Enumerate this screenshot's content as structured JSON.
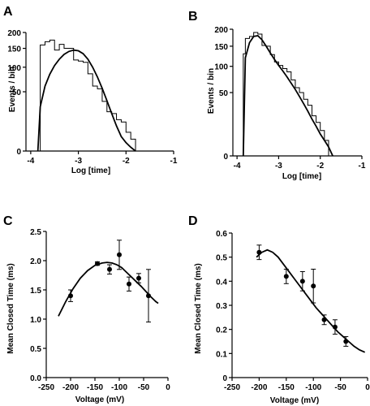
{
  "chart_data": [
    {
      "panel": "A",
      "type": "histogram",
      "xlabel": "Log [time]",
      "ylabel": "Events / bin",
      "xlim": [
        -4.1,
        -1
      ],
      "xticks": [
        -4,
        -3,
        -2,
        -1
      ],
      "yticks": [
        0,
        50,
        100,
        150,
        200
      ],
      "y_scale": "sqrt",
      "histogram": {
        "edges": [
          -3.8,
          -3.7,
          -3.6,
          -3.5,
          -3.4,
          -3.3,
          -3.2,
          -3.1,
          -3.0,
          -2.9,
          -2.8,
          -2.7,
          -2.6,
          -2.5,
          -2.4,
          -2.3,
          -2.2,
          -2.1,
          -2.0,
          -1.9,
          -1.8
        ],
        "counts": [
          160,
          170,
          175,
          145,
          162,
          150,
          150,
          118,
          115,
          112,
          85,
          60,
          55,
          35,
          22,
          20,
          14,
          12,
          5,
          2
        ]
      },
      "curve": {
        "x": [
          -3.85,
          -3.8,
          -3.7,
          -3.6,
          -3.5,
          -3.4,
          -3.3,
          -3.2,
          -3.1,
          -3.0,
          -2.9,
          -2.8,
          -2.7,
          -2.6,
          -2.5,
          -2.4,
          -2.3,
          -2.2,
          -2.1,
          -2.0,
          -1.9,
          -1.8
        ],
        "y": [
          0,
          28,
          60,
          84,
          104,
          120,
          133,
          141,
          145,
          143,
          135,
          120,
          100,
          78,
          56,
          36,
          20,
          9,
          3,
          1,
          0.2,
          0
        ]
      }
    },
    {
      "panel": "B",
      "type": "histogram",
      "xlabel": "Log [time]",
      "ylabel": "Events / bin",
      "xlim": [
        -4.1,
        -1
      ],
      "xticks": [
        -4,
        -3,
        -2,
        -1
      ],
      "yticks": [
        0,
        50,
        100,
        150,
        200
      ],
      "y_scale": "sqrt",
      "histogram": {
        "edges": [
          -3.85,
          -3.8,
          -3.7,
          -3.6,
          -3.5,
          -3.4,
          -3.3,
          -3.2,
          -3.1,
          -3.0,
          -2.9,
          -2.8,
          -2.7,
          -2.6,
          -2.5,
          -2.4,
          -2.3,
          -2.2,
          -2.1,
          -2.0,
          -1.9,
          -1.8
        ],
        "counts": [
          130,
          172,
          178,
          190,
          185,
          152,
          150,
          128,
          110,
          102,
          95,
          88,
          72,
          58,
          50,
          40,
          32,
          20,
          14,
          8,
          3
        ]
      },
      "curve": {
        "x": [
          -3.85,
          -3.8,
          -3.7,
          -3.6,
          -3.5,
          -3.4,
          -3.3,
          -3.2,
          -3.1,
          -3.0,
          -2.9,
          -2.8,
          -2.7,
          -2.6,
          -2.5,
          -2.4,
          -2.3,
          -2.2,
          -2.1,
          -2.0,
          -1.9,
          -1.8,
          -1.7
        ],
        "y": [
          0,
          120,
          160,
          178,
          180,
          168,
          150,
          132,
          116,
          102,
          90,
          78,
          66,
          55,
          44,
          34,
          25,
          17,
          11,
          6,
          3,
          1,
          0
        ]
      }
    },
    {
      "panel": "C",
      "type": "scatter",
      "xlabel": "Voltage  (mV)",
      "ylabel": "Mean Closed Time (ms)",
      "xlim": [
        -250,
        0
      ],
      "ylim": [
        0,
        2.5
      ],
      "xticks": [
        -250,
        -200,
        -150,
        -100,
        -50,
        0
      ],
      "yticks": [
        0,
        0.5,
        1.0,
        1.5,
        2.0,
        2.5
      ],
      "yticklabels": [
        "0.0",
        "0.5",
        "1.0",
        "1.5",
        "2.0",
        "2.5"
      ],
      "points": [
        {
          "x": -200,
          "y": 1.4,
          "err": 0.1
        },
        {
          "x": -145,
          "y": 1.95,
          "err": 0.03
        },
        {
          "x": -120,
          "y": 1.85,
          "err": 0.08
        },
        {
          "x": -100,
          "y": 2.1,
          "err": 0.25
        },
        {
          "x": -80,
          "y": 1.6,
          "err": 0.12
        },
        {
          "x": -60,
          "y": 1.7,
          "err": 0.08
        },
        {
          "x": -40,
          "y": 1.4,
          "err": 0.45
        }
      ],
      "curve": {
        "x": [
          -225,
          -210,
          -195,
          -180,
          -165,
          -150,
          -135,
          -125,
          -115,
          -105,
          -95,
          -85,
          -75,
          -65,
          -55,
          -45,
          -35,
          -25,
          -20
        ],
        "y": [
          1.05,
          1.3,
          1.52,
          1.7,
          1.83,
          1.92,
          1.96,
          1.97,
          1.96,
          1.93,
          1.88,
          1.8,
          1.72,
          1.64,
          1.56,
          1.47,
          1.38,
          1.3,
          1.27
        ]
      }
    },
    {
      "panel": "D",
      "type": "scatter",
      "xlabel": "Voltage  (mV)",
      "ylabel": "Mean Closed Time (ms)",
      "xlim": [
        -250,
        0
      ],
      "ylim": [
        0,
        0.6
      ],
      "xticks": [
        -250,
        -200,
        -150,
        -100,
        -50,
        0
      ],
      "yticks": [
        0,
        0.1,
        0.2,
        0.3,
        0.4,
        0.5,
        0.6
      ],
      "yticklabels": [
        "0",
        "0.1",
        "0.2",
        "0.3",
        "0.4",
        "0.5",
        "0.6"
      ],
      "points": [
        {
          "x": -200,
          "y": 0.52,
          "err": 0.03
        },
        {
          "x": -150,
          "y": 0.42,
          "err": 0.03
        },
        {
          "x": -120,
          "y": 0.4,
          "err": 0.04
        },
        {
          "x": -100,
          "y": 0.38,
          "err": 0.07
        },
        {
          "x": -80,
          "y": 0.24,
          "err": 0.02
        },
        {
          "x": -60,
          "y": 0.21,
          "err": 0.03
        },
        {
          "x": -40,
          "y": 0.15,
          "err": 0.02
        }
      ],
      "curve": {
        "x": [
          -205,
          -195,
          -185,
          -175,
          -165,
          -155,
          -145,
          -135,
          -125,
          -115,
          -105,
          -95,
          -85,
          -75,
          -65,
          -55,
          -45,
          -35,
          -25,
          -15,
          -5
        ],
        "y": [
          0.5,
          0.52,
          0.53,
          0.52,
          0.5,
          0.47,
          0.44,
          0.41,
          0.38,
          0.35,
          0.32,
          0.29,
          0.265,
          0.24,
          0.215,
          0.19,
          0.17,
          0.15,
          0.13,
          0.115,
          0.105
        ]
      }
    }
  ]
}
